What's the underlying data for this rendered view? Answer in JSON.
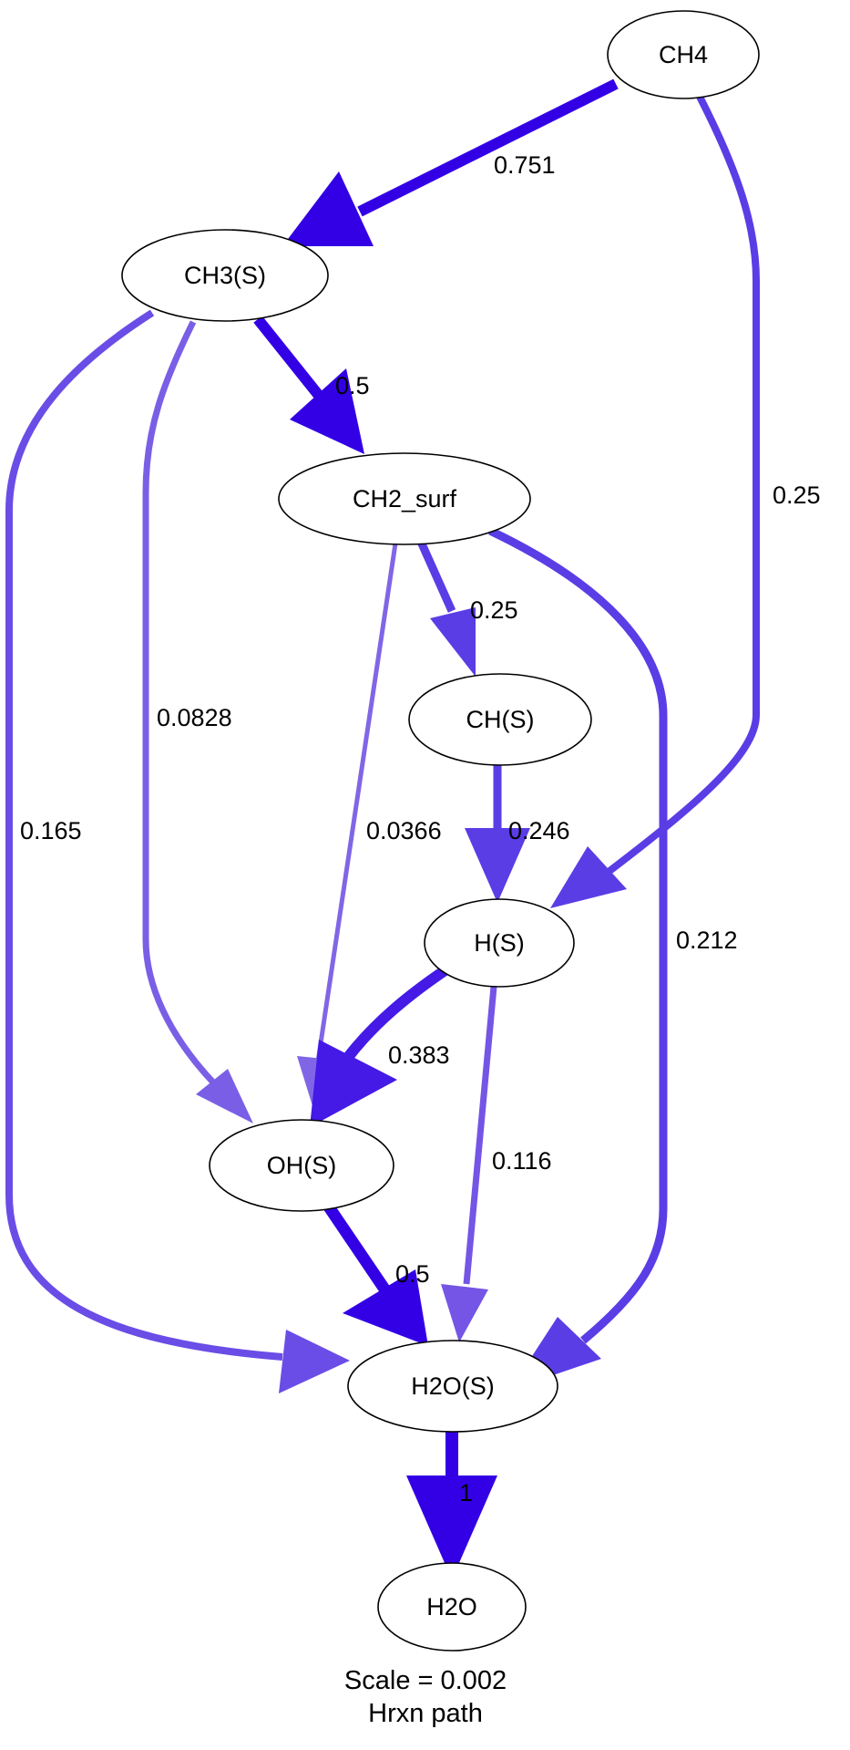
{
  "colors": {
    "strong": "#3300e6",
    "medium": "#5b3de6",
    "light": "#7a5fe6",
    "outline": "#000000",
    "background": "#ffffff"
  },
  "nodes": {
    "ch4": "CH4",
    "ch3s": "CH3(S)",
    "ch2surf": "CH2_surf",
    "chs": "CH(S)",
    "hs": "H(S)",
    "ohs": "OH(S)",
    "h2os": "H2O(S)",
    "h2o": "H2O"
  },
  "edges": [
    {
      "from": "CH4",
      "to": "CH3(S)",
      "label": "0.751"
    },
    {
      "from": "CH4",
      "to": "H(S)",
      "label": "0.25"
    },
    {
      "from": "CH3(S)",
      "to": "CH2_surf",
      "label": "0.5"
    },
    {
      "from": "CH3(S)",
      "to": "OH(S)",
      "label": "0.0828"
    },
    {
      "from": "CH3(S)",
      "to": "H2O(S)",
      "label": "0.165"
    },
    {
      "from": "CH2_surf",
      "to": "CH(S)",
      "label": "0.25"
    },
    {
      "from": "CH2_surf",
      "to": "OH(S)",
      "label": "0.0366"
    },
    {
      "from": "CH2_surf",
      "to": "H2O(S)",
      "label": "0.212"
    },
    {
      "from": "CH(S)",
      "to": "H(S)",
      "label": "0.246"
    },
    {
      "from": "H(S)",
      "to": "OH(S)",
      "label": "0.383"
    },
    {
      "from": "H(S)",
      "to": "H2O(S)",
      "label": "0.116"
    },
    {
      "from": "OH(S)",
      "to": "H2O(S)",
      "label": "0.5"
    },
    {
      "from": "H2O(S)",
      "to": "H2O",
      "label": "1"
    }
  ],
  "caption": {
    "scale": "Scale = 0.002",
    "title": "Hrxn path"
  }
}
